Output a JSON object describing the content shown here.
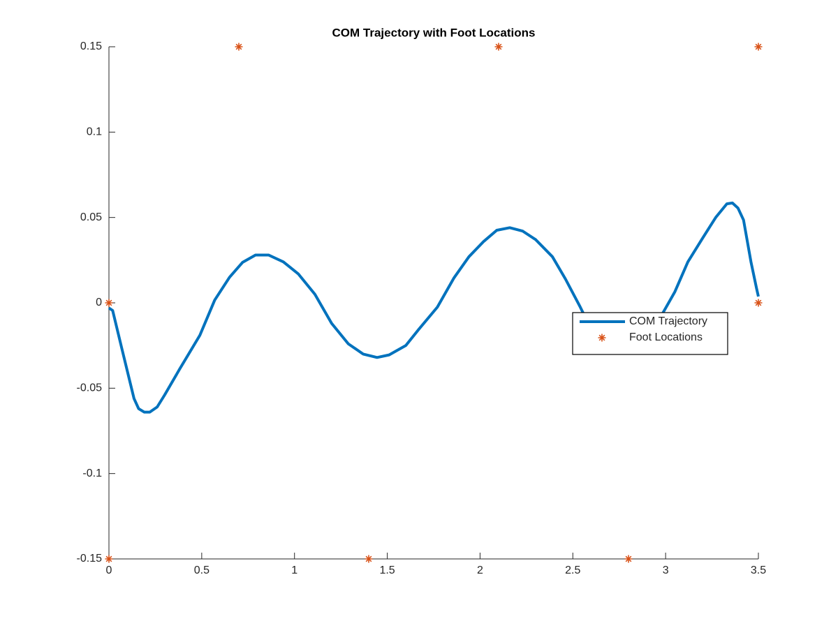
{
  "chart_data": {
    "type": "line",
    "title": "COM Trajectory with Foot Locations",
    "xlim": [
      0,
      3.5
    ],
    "ylim": [
      -0.15,
      0.15
    ],
    "xticks": [
      0,
      0.5,
      1,
      1.5,
      2,
      2.5,
      3,
      3.5
    ],
    "yticks": [
      -0.15,
      -0.1,
      -0.05,
      0,
      0.05,
      0.1,
      0.15
    ],
    "legend_position": "east",
    "series": [
      {
        "name": "COM Trajectory",
        "type": "line",
        "color": "#0072bd",
        "x": [
          0,
          0.02,
          0.07,
          0.135,
          0.16,
          0.19,
          0.22,
          0.26,
          0.3,
          0.38,
          0.49,
          0.57,
          0.65,
          0.72,
          0.79,
          0.86,
          0.94,
          1.02,
          1.11,
          1.2,
          1.29,
          1.37,
          1.445,
          1.51,
          1.6,
          1.67,
          1.77,
          1.86,
          1.94,
          2.02,
          2.09,
          2.16,
          2.23,
          2.3,
          2.39,
          2.46,
          2.54,
          2.61,
          2.7,
          2.78,
          2.86,
          2.95,
          3.05,
          3.12,
          3.2,
          3.27,
          3.33,
          3.36,
          3.39,
          3.42,
          3.46,
          3.49,
          3.5
        ],
        "values": [
          -0.003,
          -0.0045,
          -0.027,
          -0.056,
          -0.062,
          -0.064,
          -0.064,
          -0.061,
          -0.054,
          -0.039,
          -0.019,
          0.0016,
          0.015,
          0.0237,
          0.028,
          0.028,
          0.024,
          0.017,
          0.005,
          -0.012,
          -0.024,
          -0.03,
          -0.032,
          -0.0305,
          -0.025,
          -0.0155,
          -0.0025,
          0.0147,
          0.027,
          0.036,
          0.0425,
          0.044,
          0.042,
          0.037,
          0.027,
          0.014,
          -0.0025,
          -0.018,
          -0.024,
          -0.025,
          -0.023,
          -0.0127,
          0.0065,
          0.024,
          0.038,
          0.05,
          0.058,
          0.0585,
          0.0555,
          0.0485,
          0.024,
          0.0085,
          0.0037
        ]
      },
      {
        "name": "Foot Locations",
        "type": "scatter",
        "color": "#d95319",
        "x": [
          0,
          0,
          0.7,
          1.4,
          2.1,
          2.8,
          3.5,
          3.5
        ],
        "values": [
          0,
          -0.15,
          0.15,
          -0.15,
          0.15,
          -0.15,
          0.15,
          0
        ]
      }
    ]
  }
}
